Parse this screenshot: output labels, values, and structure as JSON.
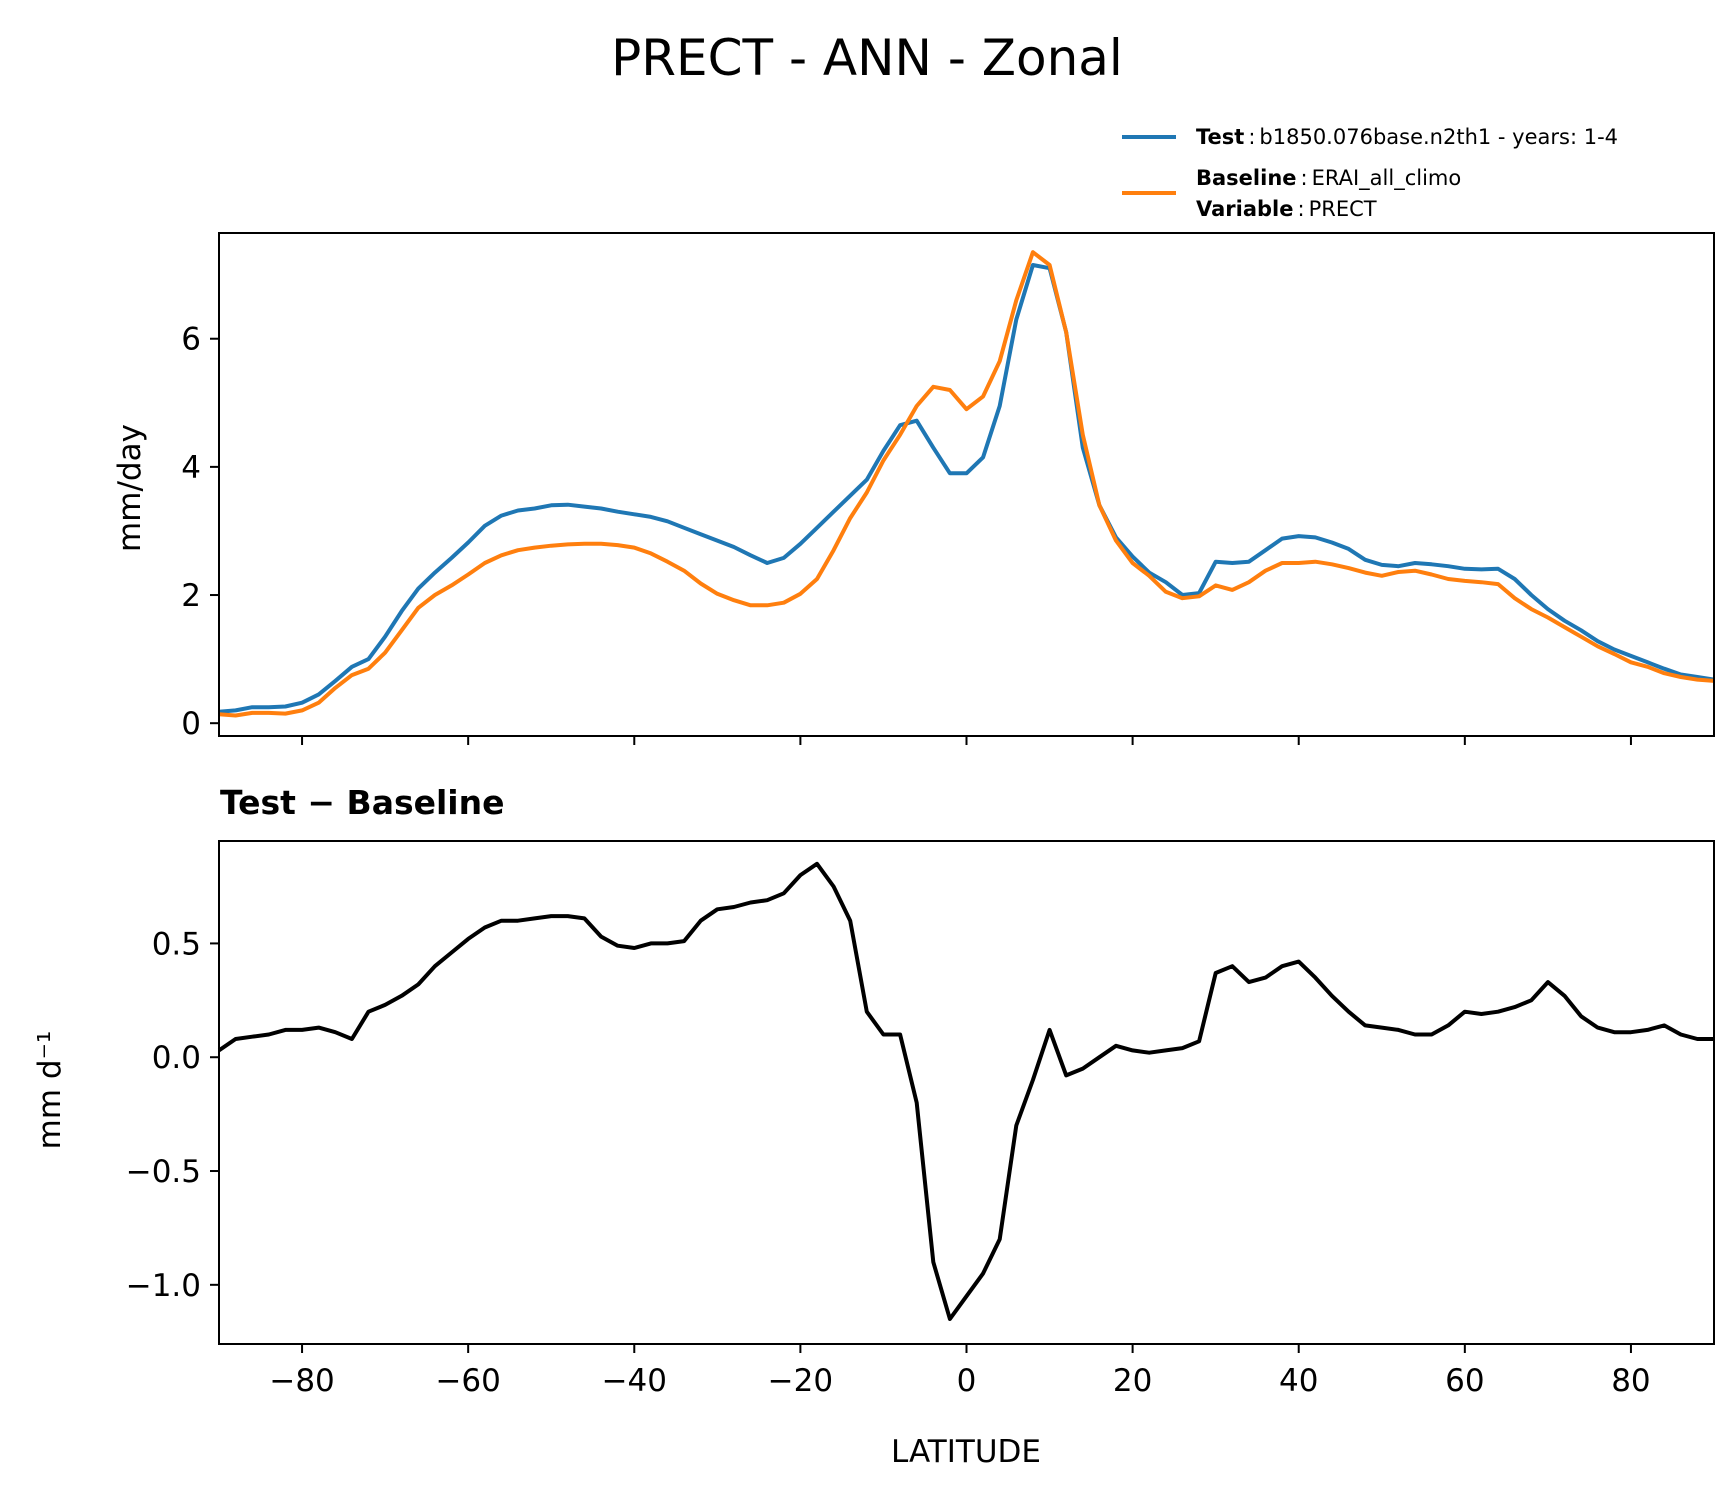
{
  "chart_data": [
    {
      "type": "line",
      "title": "PRECT - ANN - Zonal",
      "ylabel": "mm/day",
      "xlabel": "",
      "xlim": [
        -90,
        90
      ],
      "ylim": [
        -0.2,
        7.65
      ],
      "xticks": [
        -80,
        -60,
        -40,
        -20,
        0,
        20,
        40,
        60,
        80
      ],
      "yticks": [
        0,
        2,
        4,
        6
      ],
      "ytick_labels": [
        "0",
        "2",
        "4",
        "6"
      ],
      "legend": {
        "placement": "above-top-right",
        "entries": [
          {
            "key": "Test",
            "sep": ":",
            "value": "b1850.076base.n2th1 - years: 1-4",
            "color": "#1f77b4"
          },
          {
            "key": "Baseline",
            "sep": ":",
            "value": "ERAI_all_climo",
            "color": "#ff7f0e"
          },
          {
            "key": "Variable",
            "sep": ":",
            "value": "PRECT",
            "color": ""
          }
        ]
      },
      "series": [
        {
          "name": "Test",
          "color": "#1f77b4",
          "x": [
            -90,
            -88,
            -86,
            -84,
            -82,
            -80,
            -78,
            -76,
            -74,
            -72,
            -70,
            -68,
            -66,
            -64,
            -62,
            -60,
            -58,
            -56,
            -54,
            -52,
            -50,
            -48,
            -46,
            -44,
            -42,
            -40,
            -38,
            -36,
            -34,
            -32,
            -30,
            -28,
            -26,
            -24,
            -22,
            -20,
            -18,
            -16,
            -14,
            -12,
            -10,
            -8,
            -6,
            -4,
            -2,
            0,
            2,
            4,
            6,
            8,
            10,
            12,
            14,
            16,
            18,
            20,
            22,
            24,
            26,
            28,
            30,
            32,
            34,
            36,
            38,
            40,
            42,
            44,
            46,
            48,
            50,
            52,
            54,
            56,
            58,
            60,
            62,
            64,
            66,
            68,
            70,
            72,
            74,
            76,
            78,
            80,
            82,
            84,
            86,
            88,
            90
          ],
          "y": [
            0.18,
            0.2,
            0.25,
            0.25,
            0.26,
            0.32,
            0.45,
            0.66,
            0.88,
            1.0,
            1.35,
            1.75,
            2.1,
            2.35,
            2.58,
            2.82,
            3.08,
            3.24,
            3.32,
            3.35,
            3.4,
            3.41,
            3.38,
            3.35,
            3.3,
            3.26,
            3.22,
            3.15,
            3.05,
            2.95,
            2.85,
            2.75,
            2.62,
            2.5,
            2.58,
            2.8,
            3.05,
            3.3,
            3.55,
            3.8,
            4.25,
            4.65,
            4.72,
            4.3,
            3.9,
            3.9,
            4.15,
            4.95,
            6.3,
            7.15,
            7.1,
            6.1,
            4.3,
            3.4,
            2.9,
            2.6,
            2.35,
            2.2,
            2.0,
            2.03,
            2.52,
            2.5,
            2.52,
            2.7,
            2.88,
            2.92,
            2.9,
            2.82,
            2.72,
            2.55,
            2.47,
            2.45,
            2.5,
            2.48,
            2.45,
            2.41,
            2.4,
            2.41,
            2.25,
            2.0,
            1.78,
            1.6,
            1.45,
            1.28,
            1.15,
            1.05,
            0.95,
            0.85,
            0.76,
            0.72,
            0.68
          ]
        },
        {
          "name": "Baseline",
          "color": "#ff7f0e",
          "x": [
            -90,
            -88,
            -86,
            -84,
            -82,
            -80,
            -78,
            -76,
            -74,
            -72,
            -70,
            -68,
            -66,
            -64,
            -62,
            -60,
            -58,
            -56,
            -54,
            -52,
            -50,
            -48,
            -46,
            -44,
            -42,
            -40,
            -38,
            -36,
            -34,
            -32,
            -30,
            -28,
            -26,
            -24,
            -22,
            -20,
            -18,
            -16,
            -14,
            -12,
            -10,
            -8,
            -6,
            -4,
            -2,
            0,
            2,
            4,
            6,
            8,
            10,
            12,
            14,
            16,
            18,
            20,
            22,
            24,
            26,
            28,
            30,
            32,
            34,
            36,
            38,
            40,
            42,
            44,
            46,
            48,
            50,
            52,
            54,
            56,
            58,
            60,
            62,
            64,
            66,
            68,
            70,
            72,
            74,
            76,
            78,
            80,
            82,
            84,
            86,
            88,
            90
          ],
          "y": [
            0.14,
            0.12,
            0.16,
            0.16,
            0.15,
            0.2,
            0.32,
            0.55,
            0.75,
            0.85,
            1.1,
            1.45,
            1.8,
            2.0,
            2.15,
            2.32,
            2.5,
            2.62,
            2.7,
            2.74,
            2.77,
            2.79,
            2.8,
            2.8,
            2.78,
            2.74,
            2.65,
            2.52,
            2.38,
            2.18,
            2.02,
            1.92,
            1.84,
            1.84,
            1.88,
            2.02,
            2.25,
            2.7,
            3.2,
            3.6,
            4.1,
            4.5,
            4.95,
            5.25,
            5.2,
            4.9,
            5.1,
            5.65,
            6.6,
            7.35,
            7.15,
            6.1,
            4.5,
            3.4,
            2.85,
            2.5,
            2.3,
            2.05,
            1.95,
            1.98,
            2.15,
            2.08,
            2.2,
            2.38,
            2.5,
            2.5,
            2.52,
            2.48,
            2.42,
            2.35,
            2.3,
            2.36,
            2.38,
            2.32,
            2.25,
            2.22,
            2.2,
            2.17,
            1.95,
            1.78,
            1.65,
            1.5,
            1.35,
            1.2,
            1.08,
            0.95,
            0.88,
            0.78,
            0.72,
            0.68,
            0.66
          ]
        }
      ]
    },
    {
      "type": "line",
      "title": "Test − Baseline",
      "ylabel": "mm d⁻¹",
      "xlabel": "LATITUDE",
      "xlim": [
        -90,
        90
      ],
      "ylim": [
        -1.26,
        0.95
      ],
      "xticks": [
        -80,
        -60,
        -40,
        -20,
        0,
        20,
        40,
        60,
        80
      ],
      "xtick_labels": [
        "−80",
        "−60",
        "−40",
        "−20",
        "0",
        "20",
        "40",
        "60",
        "80"
      ],
      "yticks": [
        -1.0,
        -0.5,
        0.0,
        0.5
      ],
      "ytick_labels": [
        "−1.0",
        "−0.5",
        "0.0",
        "0.5"
      ],
      "series": [
        {
          "name": "",
          "color": "#000000",
          "x": [
            -90,
            -88,
            -86,
            -84,
            -82,
            -80,
            -78,
            -76,
            -74,
            -72,
            -70,
            -68,
            -66,
            -64,
            -62,
            -60,
            -58,
            -56,
            -54,
            -52,
            -50,
            -48,
            -46,
            -44,
            -42,
            -40,
            -38,
            -36,
            -34,
            -32,
            -30,
            -28,
            -26,
            -24,
            -22,
            -20,
            -18,
            -16,
            -14,
            -12,
            -10,
            -8,
            -6,
            -4,
            -2,
            0,
            2,
            4,
            6,
            8,
            10,
            12,
            14,
            16,
            18,
            20,
            22,
            24,
            26,
            28,
            30,
            32,
            34,
            36,
            38,
            40,
            42,
            44,
            46,
            48,
            50,
            52,
            54,
            56,
            58,
            60,
            62,
            64,
            66,
            68,
            70,
            72,
            74,
            76,
            78,
            80,
            82,
            84,
            86,
            88,
            90
          ],
          "y": [
            0.03,
            0.08,
            0.09,
            0.1,
            0.12,
            0.12,
            0.13,
            0.11,
            0.08,
            0.2,
            0.23,
            0.27,
            0.32,
            0.4,
            0.46,
            0.52,
            0.57,
            0.6,
            0.6,
            0.61,
            0.62,
            0.62,
            0.61,
            0.53,
            0.49,
            0.48,
            0.5,
            0.5,
            0.51,
            0.6,
            0.65,
            0.66,
            0.68,
            0.69,
            0.72,
            0.8,
            0.85,
            0.75,
            0.6,
            0.2,
            0.1,
            0.1,
            -0.2,
            -0.9,
            -1.15,
            -1.05,
            -0.95,
            -0.8,
            -0.3,
            -0.1,
            0.12,
            -0.08,
            -0.05,
            0.0,
            0.05,
            0.03,
            0.02,
            0.03,
            0.04,
            0.07,
            0.37,
            0.4,
            0.33,
            0.35,
            0.4,
            0.42,
            0.35,
            0.27,
            0.2,
            0.14,
            0.13,
            0.12,
            0.1,
            0.1,
            0.14,
            0.2,
            0.19,
            0.2,
            0.22,
            0.25,
            0.33,
            0.27,
            0.18,
            0.13,
            0.11,
            0.11,
            0.12,
            0.14,
            0.1,
            0.08,
            0.08
          ]
        }
      ]
    }
  ]
}
